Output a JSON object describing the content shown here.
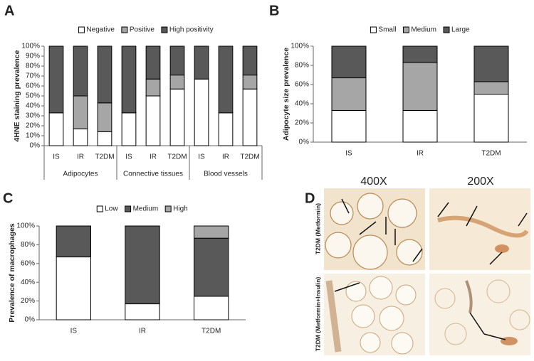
{
  "chart_data": [
    {
      "panel": "A",
      "type": "stacked_bar",
      "ylabel": "4HNE staining prevalence",
      "categories": [
        "IS",
        "IR",
        "T2DM",
        "IS",
        "IR",
        "T2DM",
        "IS",
        "IR",
        "T2DM"
      ],
      "groups": [
        "Adipocytes",
        "Connective tissues",
        "Blood vessels"
      ],
      "series": [
        {
          "name": "Negative",
          "color": "#ffffff",
          "values": [
            33,
            17,
            14,
            33,
            50,
            57,
            67,
            33,
            57
          ]
        },
        {
          "name": "Positive",
          "color": "#a6a6a6",
          "values": [
            0,
            33,
            29,
            0,
            17,
            14,
            0,
            0,
            14
          ]
        },
        {
          "name": "High positivity",
          "color": "#595959",
          "values": [
            67,
            50,
            57,
            67,
            33,
            29,
            33,
            67,
            29
          ]
        }
      ],
      "ylim": [
        0,
        100
      ],
      "yticks": [
        {
          "value": 0,
          "label": "0%"
        },
        {
          "value": 10,
          "label": "10%"
        },
        {
          "value": 20,
          "label": "20%"
        },
        {
          "value": 30,
          "label": "30%"
        },
        {
          "value": 40,
          "label": "40%"
        },
        {
          "value": 50,
          "label": "50%"
        },
        {
          "value": 60,
          "label": "60%"
        },
        {
          "value": 70,
          "label": "70%"
        },
        {
          "value": 80,
          "label": "80%"
        },
        {
          "value": 90,
          "label": "90%"
        },
        {
          "value": 100,
          "label": "100%"
        }
      ]
    },
    {
      "panel": "B",
      "type": "stacked_bar",
      "ylabel": "Adipocyte size prevalence",
      "categories": [
        "IS",
        "IR",
        "T2DM"
      ],
      "series": [
        {
          "name": "Small",
          "color": "#ffffff",
          "values": [
            33,
            33,
            50
          ]
        },
        {
          "name": "Medium",
          "color": "#a6a6a6",
          "values": [
            34,
            50,
            13
          ]
        },
        {
          "name": "Large",
          "color": "#595959",
          "values": [
            33,
            17,
            37
          ]
        }
      ],
      "ylim": [
        0,
        100
      ],
      "yticks": [
        {
          "value": 0,
          "label": "0%"
        },
        {
          "value": 20,
          "label": "20%"
        },
        {
          "value": 40,
          "label": "40%"
        },
        {
          "value": 60,
          "label": "60%"
        },
        {
          "value": 80,
          "label": "80%"
        },
        {
          "value": 100,
          "label": "100%"
        }
      ]
    },
    {
      "panel": "C",
      "type": "stacked_bar",
      "ylabel": "Prevalence of macrophages",
      "categories": [
        "IS",
        "IR",
        "T2DM"
      ],
      "series": [
        {
          "name": "Low",
          "color": "#ffffff",
          "values": [
            67,
            17,
            25
          ]
        },
        {
          "name": "Medium",
          "color": "#595959",
          "values": [
            33,
            83,
            62
          ]
        },
        {
          "name": "High",
          "color": "#a6a6a6",
          "values": [
            0,
            0,
            13
          ]
        }
      ],
      "ylim": [
        0,
        100
      ],
      "yticks": [
        {
          "value": 0,
          "label": "0%"
        },
        {
          "value": 20,
          "label": "20%"
        },
        {
          "value": 40,
          "label": "40%"
        },
        {
          "value": 60,
          "label": "60%"
        },
        {
          "value": 80,
          "label": "80%"
        },
        {
          "value": 100,
          "label": "100%"
        }
      ]
    }
  ],
  "micrographs": {
    "panel": "D",
    "columns": [
      "400X",
      "200X"
    ],
    "rows": [
      "T2DM (Metformin)",
      "T2DM (Metformin+Insulin)"
    ]
  }
}
